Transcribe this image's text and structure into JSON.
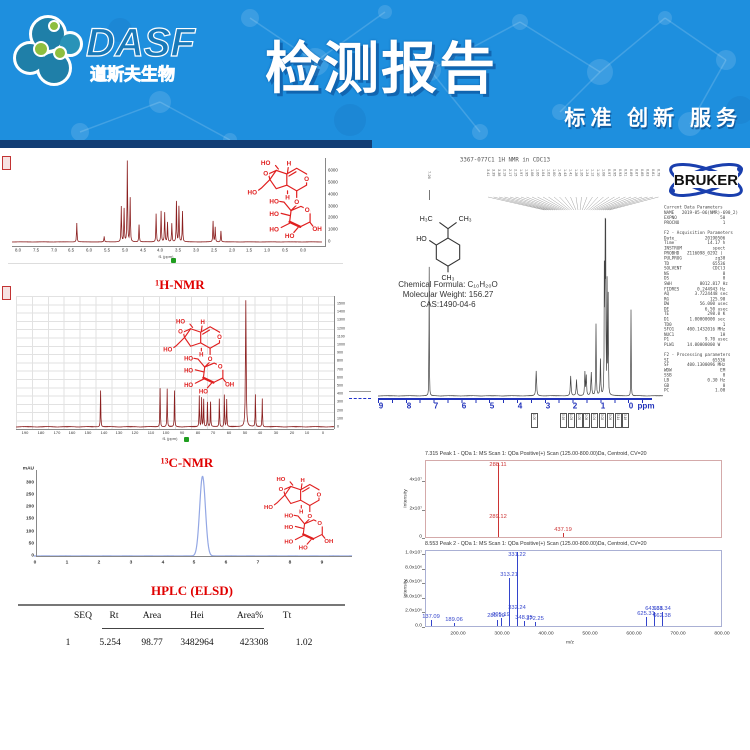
{
  "header": {
    "title": "检测报告",
    "tagline": "标准 创新 服务",
    "logo_brand": "DASF",
    "logo_sub": "道斯夫生物"
  },
  "colors": {
    "header_bg": "#1e8fde",
    "accent_red": "#e00000",
    "nmr_trace": "#8b1f1f",
    "hplc_trace": "#93a7e4",
    "bruker_trace": "#444444",
    "ms1_color": "#cc3333",
    "ms2_color": "#3344cc",
    "axis_blue": "#2233bb"
  },
  "left": {
    "hnmr_label": "¹H-NMR",
    "cnmr_label": "¹³C-NMR",
    "hplc_label": "HPLC (ELSD)",
    "f1_label": "f1 (ppm)",
    "hplc_ytitle": "mAU",
    "table": {
      "headers": [
        "SEQ",
        "Rt",
        "Area",
        "Hei",
        "Area%",
        "Tt"
      ],
      "rows": [
        [
          "1",
          "5.254",
          "98.77",
          "3482964",
          "423308",
          "1.02"
        ]
      ]
    }
  },
  "right": {
    "intensity_label": "Intensity",
    "bruker": {
      "title": "3367-077C1 1H NMR in CDC13",
      "logo": "BRUKER",
      "formula": "Chemical Formula: C₁₀H₂₀O",
      "mw": "Molecular Weight: 156.27",
      "cas": "CAS:1490-04-6",
      "isolated_peak": "7.26",
      "xunit": "ppm",
      "fan_labels": [
        "3.41",
        "3.39",
        "3.38",
        "2.19",
        "2.17",
        "2.15",
        "1.97",
        "1.95",
        "1.68",
        "1.66",
        "1.64",
        "1.62",
        "1.60",
        "1.45",
        "1.43",
        "1.41",
        "1.28",
        "1.26",
        "1.24",
        "1.12",
        "1.10",
        "1.08",
        "0.97",
        "0.95",
        "0.93",
        "0.91",
        "0.89",
        "0.87",
        "0.85",
        "0.83",
        "0.81",
        "0.79"
      ],
      "integrals_a": [
        "1.00"
      ],
      "integrals_b": [
        "0.99",
        "1.03",
        "1.05",
        "2.08",
        "1.04",
        "3.02",
        "3.09",
        "3.14",
        "3.18"
      ],
      "params": [
        "Current Data Parameters",
        "NAME   2019-05-06(NMR)-690_2)",
        "EXPNO                 50",
        "PROCNO                 1",
        "",
        "F2 - Acquisition Parameters",
        "Date_           20190506",
        "Time             14.17 h",
        "INSTRUM            spect",
        "PROBHD   Z116098_0292 (",
        "PULPROG             zg30",
        "TD                 65536",
        "SOLVENT            CDCl3",
        "NS                     8",
        "DS                     0",
        "SWH           8012.817 Hz",
        "FIDRES       0.244943 Hz",
        "AQ          3.7224448 sec",
        "RG                125.98",
        "DW            56.000 usec",
        "DE              6.50 usec",
        "TE               298.0 K",
        "D1        1.00000000 sec",
        "TD0                    1",
        "SFO1     400.1432016 MHz",
        "NUC1                  1H",
        "P1              9.70 usec",
        "PLW1     14.00000000 W",
        "",
        "F2 - Processing parameters",
        "SI                 65536",
        "SF       400.1300096 MHz",
        "WDW                   EM",
        "SSB                    0",
        "LB               0.30 Hz",
        "GB                     0",
        "PC                  1.00"
      ]
    }
  },
  "structures": {
    "catalpol": {
      "labels": [
        "HO",
        "H",
        "O",
        "H",
        "O",
        "HO",
        "O",
        "O",
        "HO",
        "HO",
        "HO",
        "OH",
        "HO"
      ]
    },
    "menthol": {
      "labels": [
        "H₃C",
        "CH₃",
        "HO",
        "CH₃"
      ]
    }
  },
  "chart_data": [
    {
      "id": "hnmr-left",
      "type": "line",
      "title": "¹H-NMR",
      "xlabel": "f1 (ppm)",
      "xlim": [
        8.17,
        -0.54
      ],
      "ymax": 6800,
      "pw": 0.016,
      "noise": 20,
      "xticks": [
        "8.0",
        "7.5",
        "7.0",
        "6.5",
        "6.0",
        "5.5",
        "5.0",
        "4.5",
        "4.0",
        "3.5",
        "3.0",
        "2.5",
        "2.0",
        "1.5",
        "1.0",
        "0.5",
        "0.0"
      ],
      "yticks": [
        "6000",
        "5000",
        "4000",
        "3000",
        "2000",
        "1000",
        "0"
      ],
      "peaks": [
        [
          6.35,
          1550
        ],
        [
          5.58,
          450
        ],
        [
          5.1,
          2900
        ],
        [
          5.02,
          2700
        ],
        [
          4.93,
          6600
        ],
        [
          4.85,
          3600
        ],
        [
          4.6,
          1400
        ],
        [
          4.12,
          2300
        ],
        [
          3.98,
          2500
        ],
        [
          3.88,
          2400
        ],
        [
          3.8,
          1600
        ],
        [
          3.68,
          1500
        ],
        [
          3.55,
          3300
        ],
        [
          3.48,
          2900
        ],
        [
          3.38,
          2500
        ],
        [
          2.52,
          1700
        ],
        [
          2.46,
          1200
        ],
        [
          2.3,
          900
        ]
      ]
    },
    {
      "id": "cnmr-left",
      "type": "line",
      "title": "¹³C-NMR",
      "xlabel": "f1 (ppm)",
      "xlim": [
        196,
        -7
      ],
      "ymax": 1560,
      "pw": 0.3,
      "noise": 7,
      "xticks": [
        "190",
        "180",
        "170",
        "160",
        "150",
        "140",
        "130",
        "120",
        "110",
        "100",
        "90",
        "80",
        "70",
        "60",
        "50",
        "40",
        "30",
        "20",
        "10",
        "0"
      ],
      "yticks": [
        "1500",
        "1400",
        "1300",
        "1200",
        "1100",
        "1000",
        "900",
        "800",
        "700",
        "600",
        "500",
        "400",
        "300",
        "200",
        "100",
        "0"
      ],
      "peaks": [
        [
          142,
          440
        ],
        [
          104,
          470
        ],
        [
          99.5,
          460
        ],
        [
          94.8,
          440
        ],
        [
          79,
          380
        ],
        [
          77.5,
          350
        ],
        [
          76.2,
          330
        ],
        [
          73.8,
          300
        ],
        [
          71.8,
          300
        ],
        [
          66.2,
          340
        ],
        [
          63,
          390
        ],
        [
          61.5,
          330
        ],
        [
          49.3,
          1540,
          0.5
        ],
        [
          43.2,
          390
        ],
        [
          38.8,
          340
        ]
      ]
    },
    {
      "id": "hplc",
      "type": "line",
      "shape": "gauss",
      "title": "HPLC (ELSD)",
      "ylabel": "mAU",
      "xlim": [
        -0.03,
        9.94
      ],
      "ymax": 320,
      "pw": 0.09,
      "noise": 0.5,
      "xticks": [
        "0",
        "1",
        "2",
        "3",
        "4",
        "5",
        "6",
        "7",
        "8",
        "9"
      ],
      "yticks": [
        "300",
        "250",
        "200",
        "150",
        "100",
        "50",
        "0"
      ],
      "peaks": [
        [
          5.254,
          308,
          0.09
        ]
      ]
    },
    {
      "id": "bruker-hnmr",
      "type": "line",
      "title": "3367-077C1 1H NMR in CDC13",
      "xunit": "ppm",
      "xlim": [
        9.1,
        -1.15
      ],
      "ymax": 100,
      "pw": 0.018,
      "noise": 0.25,
      "xticks": [
        "9",
        "8",
        "7",
        "6",
        "5",
        "4",
        "3",
        "2",
        "1",
        "0"
      ],
      "peaks": [
        [
          7.26,
          72,
          0.012
        ],
        [
          3.41,
          14,
          0.03
        ],
        [
          2.17,
          11,
          0.03
        ],
        [
          1.96,
          9,
          0.03
        ],
        [
          1.66,
          13,
          0.025
        ],
        [
          1.61,
          11,
          0.025
        ],
        [
          1.43,
          13,
          0.03
        ],
        [
          1.26,
          40,
          0.02
        ],
        [
          1.1,
          20,
          0.025
        ],
        [
          0.96,
          68,
          0.014
        ],
        [
          0.93,
          100,
          0.014
        ],
        [
          0.91,
          85,
          0.014
        ],
        [
          0.86,
          62,
          0.014
        ],
        [
          0.82,
          55,
          0.014
        ],
        [
          0,
          48,
          0.012
        ]
      ]
    },
    {
      "id": "ms-peak1",
      "type": "stick",
      "title": "7.315 Peak 1 - QDa 1: MS Scan 1: QDa Positive(+) Scan (125.00-800.00)Da, Centroid, CV=20",
      "xlim": [
        125,
        800
      ],
      "ymax": 55000000.0,
      "yticks": [
        {
          "v": 40000000.0,
          "t": "4x10⁷"
        },
        {
          "v": 20000000.0,
          "t": "2x10⁷"
        },
        {
          "v": 0,
          "t": "0"
        }
      ],
      "peaks": [
        {
          "mz": 288.11,
          "i": 52000000.0,
          "label": "288.11"
        },
        {
          "mz": 289.12,
          "i": 12000000.0,
          "label": "289.12"
        },
        {
          "mz": 437.19,
          "i": 3000000.0,
          "label": "437.19"
        }
      ]
    },
    {
      "id": "ms-peak2",
      "type": "stick",
      "title": "8.553 Peak 2 - QDa 1: MS Scan 1: QDa Positive(+) Scan (125.00-800.00)Da, Centroid, CV=20",
      "xlabel": "m/z",
      "xlim": [
        125,
        800
      ],
      "ymax": 10600000.0,
      "yticks": [
        {
          "v": 10000000.0,
          "t": "1.0x10⁷"
        },
        {
          "v": 8000000.0,
          "t": "8.0x10⁶"
        },
        {
          "v": 6000000.0,
          "t": "6.0x10⁶"
        },
        {
          "v": 4000000.0,
          "t": "4.0x10⁶"
        },
        {
          "v": 2000000.0,
          "t": "2.0x10⁶"
        },
        {
          "v": 0,
          "t": "0.0"
        }
      ],
      "xticks": [
        {
          "v": 200,
          "t": "200.00"
        },
        {
          "v": 300,
          "t": "300.00"
        },
        {
          "v": 400,
          "t": "400.00"
        },
        {
          "v": 500,
          "t": "500.00"
        },
        {
          "v": 600,
          "t": "600.00"
        },
        {
          "v": 700,
          "t": "700.00"
        },
        {
          "v": 800,
          "t": "800.00"
        }
      ],
      "peaks": [
        {
          "mz": 137.09,
          "i": 800000.0,
          "label": "137.09"
        },
        {
          "mz": 189.06,
          "i": 400000.0,
          "label": "189.06"
        },
        {
          "mz": 285.19,
          "i": 900000.0,
          "label": "285.19"
        },
        {
          "mz": 295.19,
          "i": 1100000.0,
          "label": "295.19"
        },
        {
          "mz": 313.21,
          "i": 6600000.0,
          "label": "313.21"
        },
        {
          "mz": 331.22,
          "i": 10200000.0,
          "label": "331.22"
        },
        {
          "mz": 332.24,
          "i": 2000000.0,
          "label": "332.24"
        },
        {
          "mz": 348.25,
          "i": 700000.0,
          "label": "348.25"
        },
        {
          "mz": 372.25,
          "i": 600000.0,
          "label": "372.25"
        },
        {
          "mz": 625.31,
          "i": 1200000.0,
          "label": "625.31"
        },
        {
          "mz": 643.38,
          "i": 1900000.0,
          "label": "643.38"
        },
        {
          "mz": 661.34,
          "i": 1900000.0,
          "label": "661.34"
        },
        {
          "mz": 662.38,
          "i": 900000.0,
          "label": "662.38"
        }
      ]
    }
  ]
}
